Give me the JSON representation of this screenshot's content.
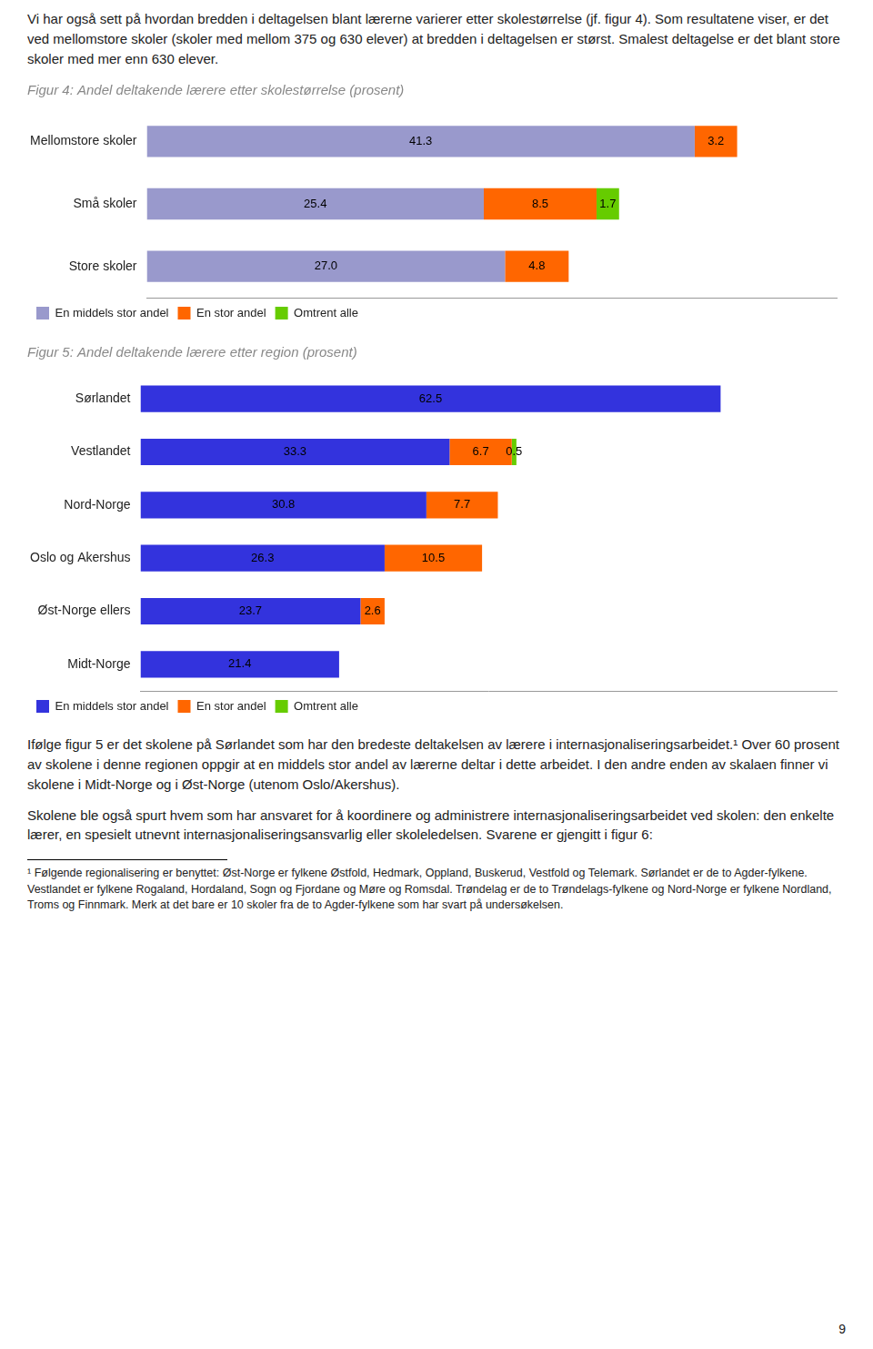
{
  "chart_data": [
    {
      "type": "bar",
      "orientation": "horizontal",
      "stacked": true,
      "title": "Figur 4: Andel deltakende lærere etter skolestørrelse (prosent)",
      "annotations": [
        "Vi har også sett på hvordan bredden i deltagelsen blant lærerne varierer etter skolestørrelse (jf. figur 4). Som resultatene viser, er det ved mellomstore skoler (skoler med mellom 375 og 630 elever) at bredden i deltagelsen er størst. Smalest deltagelse er det blant store skoler med mer enn 630 elever."
      ],
      "categories": [
        "Mellomstore skoler",
        "Små skoler",
        "Store skoler"
      ],
      "series": [
        {
          "name": "En middels stor andel",
          "color": "#9999cc",
          "values": [
            41.3,
            25.4,
            27.0
          ],
          "value_labels": [
            "41.3",
            "25.4",
            "27.0"
          ]
        },
        {
          "name": "En stor andel",
          "color": "#ff6600",
          "values": [
            3.2,
            8.5,
            4.8
          ]
        },
        {
          "name": "Omtrent alle",
          "color": "#66cc00",
          "values": [
            0.0,
            1.7,
            0.0
          ]
        }
      ],
      "xlim": [
        0,
        52
      ],
      "grid": false,
      "legend": "bottom",
      "data_labels": true,
      "tick_labels": "y"
    },
    {
      "type": "bar",
      "orientation": "horizontal",
      "stacked": true,
      "title": "Figur 5: Andel deltakende lærere etter region (prosent)",
      "annotations": [
        "Ifølge figur 5 er det skolene på Sørlandet som har den bredeste deltakelsen av lærere i internasjonaliseringsarbeidet.¹ Over 60 prosent av skolene i denne regionen oppgir at en middels stor andel av lærerne deltar i dette arbeidet. I den andre enden av skalaen finner vi skolene i Midt-Norge og i Øst-Norge (utenom Oslo/Akershus).",
        "Skolene ble også spurt hvem som har ansvaret for å koordinere og administrere internasjonaliseringsarbeidet ved skolen: den enkelte lærer, en spesielt utnevnt internasjonaliseringsansvarlig eller skoleledelsen. Svarene er gjengitt i figur 6:",
        "¹ Følgende regionalisering er benyttet: Øst-Norge er fylkene Østfold, Hedmark, Oppland, Buskerud, Vestfold og Telemark. Sørlandet er de to Agder-fylkene. Vestlandet er fylkene Rogaland, Hordaland, Sogn og Fjordane og Møre og Romsdal. Trøndelag er de to Trøndelags-fylkene og Nord-Norge er fylkene Nordland, Troms og Finnmark. Merk at det bare er 10 skoler fra de to Agder-fylkene som har svart på undersøkelsen.",
        "9"
      ],
      "categories": [
        "Sørlandet",
        "Vestlandet",
        "Nord-Norge",
        "Oslo og Akershus",
        "Øst-Norge ellers",
        "Midt-Norge"
      ],
      "series": [
        {
          "name": "En middels stor andel",
          "color": "#3333dd",
          "values": [
            62.5,
            33.3,
            30.8,
            26.3,
            23.7,
            21.4
          ]
        },
        {
          "name": "En stor andel",
          "color": "#ff6600",
          "values": [
            0.0,
            6.7,
            7.7,
            10.5,
            2.6,
            0.0
          ]
        },
        {
          "name": "Omtrent alle",
          "color": "#66cc00",
          "values": [
            0.0,
            0.5,
            0.0,
            0.0,
            0.0,
            0.0
          ]
        }
      ],
      "xlim": [
        0,
        75
      ],
      "grid": false,
      "legend": "bottom",
      "data_labels": true,
      "tick_labels": "y"
    }
  ]
}
